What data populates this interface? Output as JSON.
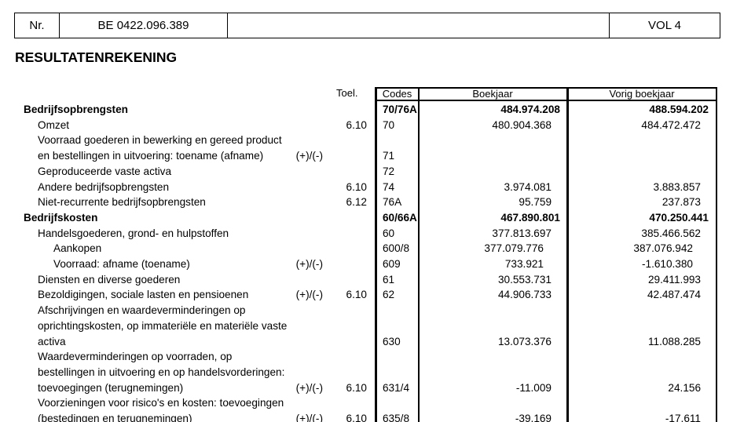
{
  "header": {
    "nr_label": "Nr.",
    "nr_value": "BE 0422.096.389",
    "blank": "",
    "vol": "VOL 4"
  },
  "title": "RESULTATENREKENING",
  "columns": {
    "toel": "Toel.",
    "codes": "Codes",
    "current": "Boekjaar",
    "previous": "Vorig boekjaar"
  },
  "rows": [
    {
      "label": "Bedrijfsopbrengsten",
      "level": 0,
      "bold": true,
      "sign": "",
      "toel": "",
      "code": "70/76A",
      "current": "484.974.208",
      "previous": "488.594.202"
    },
    {
      "label": "Omzet",
      "level": 1,
      "sign": "",
      "toel": "6.10",
      "code": "70",
      "current": "480.904.368",
      "previous": "484.472.472"
    },
    {
      "label": "Voorraad goederen in bewerking en gereed product en bestellingen in uitvoering: toename (afname)",
      "level": 1,
      "sign": "(+)/(-)",
      "toel": "",
      "code": "71",
      "current": "",
      "previous": ""
    },
    {
      "label": "Geproduceerde vaste activa",
      "level": 1,
      "sign": "",
      "toel": "",
      "code": "72",
      "current": "",
      "previous": ""
    },
    {
      "label": "Andere bedrijfsopbrengsten",
      "level": 1,
      "sign": "",
      "toel": "6.10",
      "code": "74",
      "current": "3.974.081",
      "previous": "3.883.857"
    },
    {
      "label": "Niet-recurrente bedrijfsopbrengsten",
      "level": 1,
      "sign": "",
      "toel": "6.12",
      "code": "76A",
      "current": "95.759",
      "previous": "237.873"
    },
    {
      "label": "Bedrijfskosten",
      "level": 0,
      "bold": true,
      "sign": "",
      "toel": "",
      "code": "60/66A",
      "current": "467.890.801",
      "previous": "470.250.441"
    },
    {
      "label": "Handelsgoederen, grond- en hulpstoffen",
      "level": 1,
      "sign": "",
      "toel": "",
      "code": "60",
      "current": "377.813.697",
      "previous": "385.466.562"
    },
    {
      "label": "Aankopen",
      "level": 2,
      "sign": "",
      "toel": "",
      "code": "600/8",
      "current": "377.079.776",
      "previous": "387.076.942"
    },
    {
      "label": "Voorraad: afname (toename)",
      "level": 2,
      "sign": "(+)/(-)",
      "toel": "",
      "code": "609",
      "current": "733.921",
      "previous": "-1.610.380"
    },
    {
      "label": "Diensten en diverse goederen",
      "level": 1,
      "sign": "",
      "toel": "",
      "code": "61",
      "current": "30.553.731",
      "previous": "29.411.993"
    },
    {
      "label": "Bezoldigingen, sociale lasten en pensioenen",
      "level": 1,
      "sign": "(+)/(-)",
      "toel": "6.10",
      "code": "62",
      "current": "44.906.733",
      "previous": "42.487.474"
    },
    {
      "label": "Afschrijvingen en waardeverminderingen op oprichtingskosten, op immateriële en materiële vaste activa",
      "level": 1,
      "sign": "",
      "toel": "",
      "code": "630",
      "current": "13.073.376",
      "previous": "11.088.285"
    },
    {
      "label": "Waardeverminderingen op voorraden, op bestellingen in uitvoering en op handelsvorderingen: toevoegingen (terugnemingen)",
      "level": 1,
      "sign": "(+)/(-)",
      "toel": "6.10",
      "code": "631/4",
      "current": "-11.009",
      "previous": "24.156"
    },
    {
      "label": "Voorzieningen voor risico's en kosten: toevoegingen (bestedingen en terugnemingen)",
      "level": 1,
      "sign": "(+)/(-)",
      "toel": "6.10",
      "code": "635/8",
      "current": "-39.169",
      "previous": "-17.611"
    }
  ]
}
